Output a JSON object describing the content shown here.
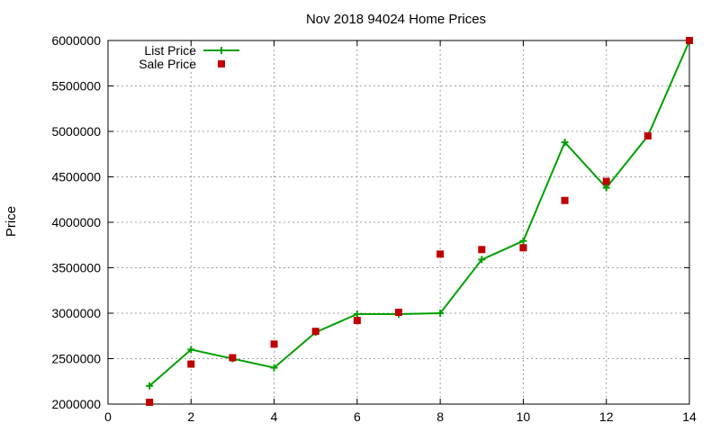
{
  "chart_data": {
    "type": "line",
    "title": "Nov 2018 94024 Home Prices",
    "xlabel": "",
    "ylabel": "Price",
    "xlim": [
      0,
      14
    ],
    "ylim": [
      2000000,
      6000000
    ],
    "xticks": [
      0,
      2,
      4,
      6,
      8,
      10,
      12,
      14
    ],
    "yticks": [
      2000000,
      2500000,
      3000000,
      3500000,
      4000000,
      4500000,
      5000000,
      5500000,
      6000000
    ],
    "grid": true,
    "legend_position": "top-left",
    "series": [
      {
        "name": "List Price",
        "style": "line-points",
        "marker": "plus",
        "color": "#00a000",
        "x": [
          1,
          2,
          3,
          4,
          5,
          6,
          7,
          8,
          9,
          10,
          11,
          12,
          13,
          14
        ],
        "y": [
          2200000,
          2600000,
          2500000,
          2400000,
          2790000,
          2990000,
          2990000,
          3000000,
          3590000,
          3795000,
          4880000,
          4380000,
          4950000,
          5995000
        ]
      },
      {
        "name": "Sale Price",
        "style": "points",
        "marker": "square",
        "color": "#c00000",
        "x": [
          1,
          2,
          3,
          4,
          5,
          6,
          7,
          8,
          9,
          10,
          11,
          12,
          13,
          14
        ],
        "y": [
          2020000,
          2440000,
          2510000,
          2660000,
          2800000,
          2920000,
          3010000,
          3650000,
          3700000,
          3720000,
          4240000,
          4450000,
          4950000,
          6000000
        ]
      }
    ]
  }
}
